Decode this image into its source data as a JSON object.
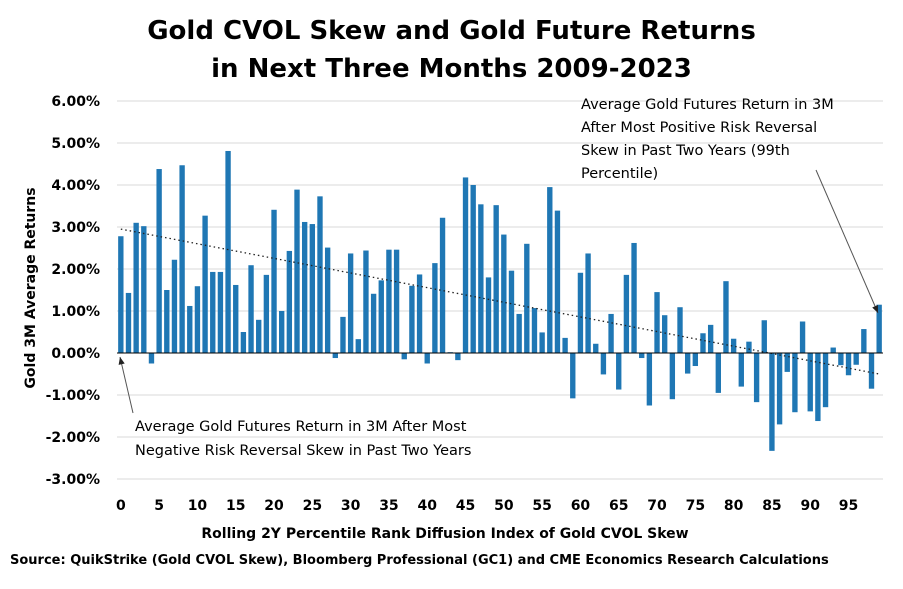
{
  "title_line1": "Gold CVOL Skew and Gold Future Returns",
  "title_line2": "in Next Three Months 2009-2023",
  "source": "Source: QuikStrike (Gold CVOL Skew), Bloomberg Professional (GC1) and CME Economics Research Calculations",
  "annotations": {
    "top_right": [
      "Average Gold Futures Return in 3M",
      "After Most Positive Risk Reversal",
      "Skew in Past Two Years (99th",
      "Percentile)"
    ],
    "bottom_left": [
      "Average Gold Futures Return in 3M After Most",
      "Negative Risk Reversal Skew in Past Two Years"
    ]
  },
  "colors": {
    "bar": "#1f77b4",
    "axis": "#000000",
    "gridline": "#d9d9d9"
  },
  "chart_data": {
    "type": "bar",
    "xlabel": "Rolling 2Y Percentile Rank Diffusion Index of Gold CVOL Skew",
    "ylabel": "Gold 3M Average Returns",
    "ylim": [
      -3,
      6
    ],
    "y_ticks": [
      "6.00%",
      "5.00%",
      "4.00%",
      "3.00%",
      "2.00%",
      "1.00%",
      "0.00%",
      "-1.00%",
      "-2.00%",
      "-3.00%"
    ],
    "x_ticks": [
      "0",
      "5",
      "10",
      "15",
      "20",
      "25",
      "30",
      "35",
      "40",
      "45",
      "50",
      "55",
      "60",
      "65",
      "70",
      "75",
      "80",
      "85",
      "90",
      "95"
    ],
    "grid": "horizontal",
    "trendline": {
      "style": "dotted",
      "start": 2.95,
      "end": -0.5
    },
    "categories": [
      0,
      1,
      2,
      3,
      4,
      5,
      6,
      7,
      8,
      9,
      10,
      11,
      12,
      13,
      14,
      15,
      16,
      17,
      18,
      19,
      20,
      21,
      22,
      23,
      24,
      25,
      26,
      27,
      28,
      29,
      30,
      31,
      32,
      33,
      34,
      35,
      36,
      37,
      38,
      39,
      40,
      41,
      42,
      43,
      44,
      45,
      46,
      47,
      48,
      49,
      50,
      51,
      52,
      53,
      54,
      55,
      56,
      57,
      58,
      59,
      60,
      61,
      62,
      63,
      64,
      65,
      66,
      67,
      68,
      69,
      70,
      71,
      72,
      73,
      74,
      75,
      76,
      77,
      78,
      79,
      80,
      81,
      82,
      83,
      84,
      85,
      86,
      87,
      88,
      89,
      90,
      91,
      92,
      93,
      94,
      95,
      96,
      97,
      98,
      99
    ],
    "values": [
      2.78,
      1.43,
      3.1,
      3.02,
      -0.25,
      4.38,
      1.5,
      2.22,
      4.47,
      1.12,
      1.59,
      3.27,
      1.93,
      1.93,
      4.81,
      1.62,
      0.5,
      2.09,
      0.79,
      1.86,
      3.41,
      1.0,
      2.43,
      3.89,
      3.12,
      3.07,
      3.73,
      2.51,
      -0.12,
      0.86,
      2.37,
      0.33,
      2.44,
      1.41,
      1.73,
      2.46,
      2.46,
      -0.15,
      1.6,
      1.87,
      -0.25,
      2.14,
      3.22,
      0.02,
      -0.17,
      4.18,
      4.0,
      3.54,
      1.8,
      3.52,
      2.82,
      1.96,
      0.93,
      2.6,
      1.07,
      0.49,
      3.95,
      3.39,
      0.36,
      -1.08,
      1.91,
      2.37,
      0.22,
      -0.51,
      0.93,
      -0.87,
      1.86,
      2.62,
      -0.12,
      -1.25,
      1.45,
      0.9,
      -1.1,
      1.09,
      -0.49,
      -0.31,
      0.47,
      0.67,
      -0.95,
      1.71,
      0.34,
      -0.8,
      0.27,
      -1.17,
      0.78,
      -2.33,
      -1.7,
      -0.45,
      -1.41,
      0.75,
      -1.39,
      -1.62,
      -1.29,
      0.13,
      -0.29,
      -0.53,
      -0.28,
      0.57,
      -0.85,
      1.15
    ]
  }
}
